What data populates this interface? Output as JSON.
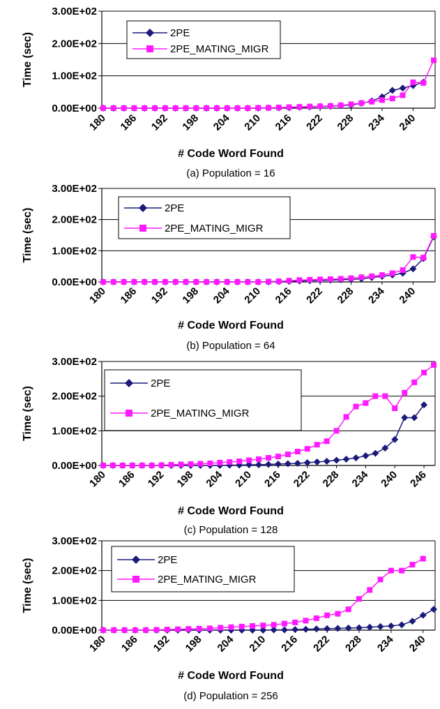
{
  "chart_data": [
    {
      "type": "line",
      "caption": "(a) Population = 16",
      "xlabel": "# Code Word Found",
      "ylabel": "Time (sec)",
      "ylim": [
        0,
        300
      ],
      "yticks": [
        "0.00E+00",
        "1.00E+02",
        "2.00E+02",
        "3.00E+02"
      ],
      "xticks": [
        "180",
        "186",
        "192",
        "198",
        "204",
        "210",
        "216",
        "222",
        "228",
        "234",
        "240"
      ],
      "xlim": [
        180,
        244
      ],
      "grid": true,
      "legend_position": "top-left",
      "series": [
        {
          "name": "2PE",
          "color": "#1a1a7a",
          "marker": "diamond",
          "x": [
            180,
            182,
            184,
            186,
            188,
            190,
            192,
            194,
            196,
            198,
            200,
            202,
            204,
            206,
            208,
            210,
            212,
            214,
            216,
            218,
            220,
            222,
            224,
            226,
            228,
            230,
            232,
            234,
            236,
            238,
            240,
            242
          ],
          "y": [
            0,
            0,
            0,
            0,
            0,
            0,
            0,
            0,
            0,
            0,
            0,
            0,
            0,
            0,
            0,
            0,
            1,
            1,
            2,
            3,
            4,
            5,
            6,
            8,
            10,
            15,
            22,
            35,
            55,
            62,
            70,
            80
          ]
        },
        {
          "name": "2PE_MATING_MIGR",
          "color": "#ff1aff",
          "marker": "square",
          "x": [
            180,
            182,
            184,
            186,
            188,
            190,
            192,
            194,
            196,
            198,
            200,
            202,
            204,
            206,
            208,
            210,
            212,
            214,
            216,
            218,
            220,
            222,
            224,
            226,
            228,
            230,
            232,
            234,
            236,
            238,
            240,
            242,
            244
          ],
          "y": [
            0,
            0,
            0,
            0,
            0,
            0,
            0,
            0,
            0,
            0,
            0,
            0,
            0,
            0,
            0,
            1,
            1,
            2,
            3,
            4,
            5,
            6,
            7,
            9,
            12,
            16,
            20,
            25,
            30,
            40,
            80,
            78,
            148
          ]
        }
      ]
    },
    {
      "type": "line",
      "caption": "(b) Population = 64",
      "xlabel": "# Code Word Found",
      "ylabel": "Time (sec)",
      "ylim": [
        0,
        300
      ],
      "yticks": [
        "0.00E+00",
        "1.00E+02",
        "2.00E+02",
        "3.00E+02"
      ],
      "xticks": [
        "180",
        "186",
        "192",
        "198",
        "204",
        "210",
        "216",
        "222",
        "228",
        "234",
        "240"
      ],
      "xlim": [
        180,
        244
      ],
      "grid": true,
      "legend_position": "top-left",
      "series": [
        {
          "name": "2PE",
          "color": "#1a1a7a",
          "marker": "diamond",
          "x": [
            180,
            182,
            184,
            186,
            188,
            190,
            192,
            194,
            196,
            198,
            200,
            202,
            204,
            206,
            208,
            210,
            212,
            214,
            216,
            218,
            220,
            222,
            224,
            226,
            228,
            230,
            232,
            234,
            236,
            238,
            240,
            242,
            244
          ],
          "y": [
            0,
            0,
            0,
            0,
            0,
            0,
            0,
            0,
            0,
            0,
            0,
            0,
            0,
            0,
            0,
            0,
            0,
            1,
            2,
            3,
            4,
            5,
            6,
            7,
            8,
            10,
            14,
            18,
            22,
            28,
            42,
            75,
            145
          ]
        },
        {
          "name": "2PE_MATING_MIGR",
          "color": "#ff1aff",
          "marker": "square",
          "x": [
            180,
            182,
            184,
            186,
            188,
            190,
            192,
            194,
            196,
            198,
            200,
            202,
            204,
            206,
            208,
            210,
            212,
            214,
            216,
            218,
            220,
            222,
            224,
            226,
            228,
            230,
            232,
            234,
            236,
            238,
            240,
            242,
            244
          ],
          "y": [
            0,
            0,
            0,
            0,
            0,
            0,
            0,
            0,
            0,
            0,
            0,
            0,
            0,
            0,
            0,
            0,
            1,
            2,
            4,
            6,
            7,
            8,
            9,
            10,
            12,
            15,
            18,
            22,
            28,
            38,
            80,
            78,
            148
          ]
        }
      ]
    },
    {
      "type": "line",
      "caption": "(c) Population = 128",
      "xlabel": "# Code Word Found",
      "ylabel": "Time (sec)",
      "ylim": [
        0,
        300
      ],
      "yticks": [
        "0.00E+00",
        "1.00E+02",
        "2.00E+02",
        "3.00E+02"
      ],
      "xticks": [
        "180",
        "186",
        "192",
        "198",
        "204",
        "210",
        "216",
        "222",
        "228",
        "234",
        "240",
        "246"
      ],
      "xlim": [
        180,
        248
      ],
      "grid": true,
      "legend_position": "top-left",
      "series": [
        {
          "name": "2PE",
          "color": "#1a1a7a",
          "marker": "diamond",
          "x": [
            180,
            182,
            184,
            186,
            188,
            190,
            192,
            194,
            196,
            198,
            200,
            202,
            204,
            206,
            208,
            210,
            212,
            214,
            216,
            218,
            220,
            222,
            224,
            226,
            228,
            230,
            232,
            234,
            236,
            238,
            240,
            242,
            244,
            246
          ],
          "y": [
            0,
            0,
            0,
            0,
            0,
            0,
            0,
            0,
            0,
            0,
            0,
            0,
            0,
            1,
            1,
            2,
            2,
            3,
            4,
            5,
            6,
            8,
            10,
            12,
            15,
            18,
            22,
            28,
            35,
            50,
            75,
            138,
            138,
            175
          ]
        },
        {
          "name": "2PE_MATING_MIGR",
          "color": "#ff1aff",
          "marker": "square",
          "x": [
            180,
            182,
            184,
            186,
            188,
            190,
            192,
            194,
            196,
            198,
            200,
            202,
            204,
            206,
            208,
            210,
            212,
            214,
            216,
            218,
            220,
            222,
            224,
            226,
            228,
            230,
            232,
            234,
            236,
            238,
            240,
            242,
            244,
            246,
            248
          ],
          "y": [
            0,
            0,
            0,
            0,
            0,
            0,
            1,
            2,
            3,
            4,
            5,
            6,
            8,
            10,
            12,
            15,
            18,
            22,
            26,
            32,
            40,
            48,
            60,
            70,
            100,
            140,
            170,
            180,
            200,
            200,
            165,
            210,
            240,
            268,
            290
          ]
        }
      ]
    },
    {
      "type": "line",
      "caption": "(d) Population = 256",
      "xlabel": "# Code Word Found",
      "ylabel": "Time (sec)",
      "ylim": [
        0,
        300
      ],
      "yticks": [
        "0.00E+00",
        "1.00E+02",
        "2.00E+02",
        "3.00E+02"
      ],
      "xticks": [
        "180",
        "186",
        "192",
        "198",
        "204",
        "210",
        "216",
        "222",
        "228",
        "234",
        "240"
      ],
      "xlim": [
        180,
        242
      ],
      "grid": true,
      "legend_position": "top-left",
      "series": [
        {
          "name": "2PE",
          "color": "#1a1a7a",
          "marker": "diamond",
          "x": [
            180,
            182,
            184,
            186,
            188,
            190,
            192,
            194,
            196,
            198,
            200,
            202,
            204,
            206,
            208,
            210,
            212,
            214,
            216,
            218,
            220,
            222,
            224,
            226,
            228,
            230,
            232,
            234,
            236,
            238,
            240,
            242
          ],
          "y": [
            0,
            0,
            0,
            0,
            0,
            0,
            0,
            0,
            0,
            0,
            0,
            0,
            0,
            0,
            0,
            0,
            1,
            1,
            2,
            3,
            4,
            5,
            6,
            7,
            8,
            10,
            12,
            14,
            18,
            30,
            50,
            70
          ]
        },
        {
          "name": "2PE_MATING_MIGR",
          "color": "#ff1aff",
          "marker": "square",
          "x": [
            180,
            182,
            184,
            186,
            188,
            190,
            192,
            194,
            196,
            198,
            200,
            202,
            204,
            206,
            208,
            210,
            212,
            214,
            216,
            218,
            220,
            222,
            224,
            226,
            228,
            230,
            232,
            234,
            236,
            238,
            240
          ],
          "y": [
            0,
            0,
            0,
            0,
            0,
            1,
            2,
            3,
            4,
            5,
            6,
            8,
            10,
            12,
            14,
            16,
            18,
            22,
            26,
            32,
            40,
            50,
            55,
            70,
            105,
            135,
            170,
            200,
            200,
            220,
            240
          ]
        }
      ]
    }
  ]
}
